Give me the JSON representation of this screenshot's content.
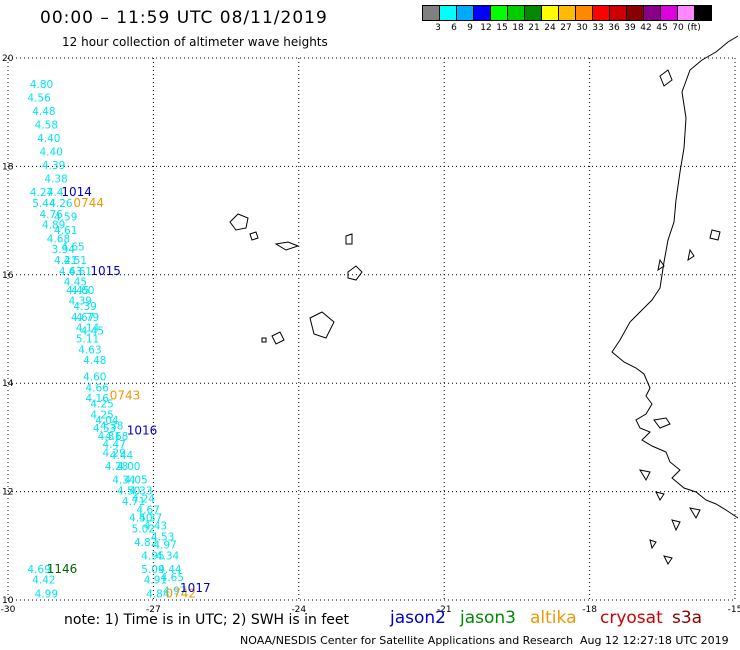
{
  "header": {
    "title": "00:00 – 11:59 UTC 08/11/2019",
    "subtitle": "12 hour collection of altimeter wave heights"
  },
  "legend": {
    "colors": [
      "#808080",
      "#00ffff",
      "#00aaff",
      "#0000ff",
      "#00ff00",
      "#00cc00",
      "#008800",
      "#ffff00",
      "#ffbb00",
      "#ff8800",
      "#ff0000",
      "#cc0000",
      "#880000",
      "#880088",
      "#dd00dd",
      "#ff88ff",
      "#000000"
    ],
    "labels": [
      "3",
      "6",
      "9",
      "12",
      "15",
      "18",
      "21",
      "24",
      "27",
      "30",
      "33",
      "36",
      "39",
      "42",
      "45",
      "70",
      "(ft)"
    ]
  },
  "map": {
    "lat_labels": [
      "20",
      "18",
      "16",
      "14",
      "12",
      "10"
    ],
    "lon_labels": [
      "-30",
      "-27",
      "-24",
      "-21",
      "-18",
      "-15"
    ],
    "lat_range": [
      10,
      20
    ],
    "lon_range": [
      -30,
      -15
    ],
    "cyan_color": "#00e5ee",
    "track_points": [
      {
        "lon": -29.55,
        "lat": 19.45,
        "v": "4.80"
      },
      {
        "lon": -29.6,
        "lat": 19.2,
        "v": "4.56"
      },
      {
        "lon": -29.5,
        "lat": 18.95,
        "v": "4.48"
      },
      {
        "lon": -29.45,
        "lat": 18.7,
        "v": "4.58"
      },
      {
        "lon": -29.4,
        "lat": 18.45,
        "v": "4.40"
      },
      {
        "lon": -29.35,
        "lat": 18.2,
        "v": "4.40"
      },
      {
        "lon": -29.3,
        "lat": 17.95,
        "v": "4.39"
      },
      {
        "lon": -29.25,
        "lat": 17.7,
        "v": "4.38"
      },
      {
        "lon": -29.55,
        "lat": 17.45,
        "v": "4.27"
      },
      {
        "lon": -29.2,
        "lat": 17.45,
        "v": "4.4"
      },
      {
        "lon": -29.5,
        "lat": 17.25,
        "v": "5.44"
      },
      {
        "lon": -29.15,
        "lat": 17.25,
        "v": "4.26"
      },
      {
        "lon": -29.35,
        "lat": 17.05,
        "v": "4.76"
      },
      {
        "lon": -29.05,
        "lat": 17.0,
        "v": "4.59"
      },
      {
        "lon": -29.3,
        "lat": 16.85,
        "v": "4.89"
      },
      {
        "lon": -29.05,
        "lat": 16.75,
        "v": "4.61"
      },
      {
        "lon": -29.2,
        "lat": 16.6,
        "v": "4.68"
      },
      {
        "lon": -29.1,
        "lat": 16.4,
        "v": "3.94"
      },
      {
        "lon": -28.9,
        "lat": 16.45,
        "v": "4.65"
      },
      {
        "lon": -29.05,
        "lat": 16.2,
        "v": "4.21"
      },
      {
        "lon": -28.85,
        "lat": 16.2,
        "v": "4.51"
      },
      {
        "lon": -28.95,
        "lat": 16.0,
        "v": "4.63"
      },
      {
        "lon": -28.75,
        "lat": 16.0,
        "v": "4.61"
      },
      {
        "lon": -28.85,
        "lat": 15.8,
        "v": "4.45"
      },
      {
        "lon": -28.8,
        "lat": 15.65,
        "v": "4.45"
      },
      {
        "lon": -28.7,
        "lat": 15.65,
        "v": "4.60"
      },
      {
        "lon": -28.75,
        "lat": 15.45,
        "v": "4.39"
      },
      {
        "lon": -28.65,
        "lat": 15.35,
        "v": "4.39"
      },
      {
        "lon": -28.7,
        "lat": 15.15,
        "v": "4.67"
      },
      {
        "lon": -28.6,
        "lat": 15.15,
        "v": "4.79"
      },
      {
        "lon": -28.6,
        "lat": 14.95,
        "v": "4.14"
      },
      {
        "lon": -28.5,
        "lat": 14.9,
        "v": "4.45"
      },
      {
        "lon": -28.6,
        "lat": 14.75,
        "v": "5.11"
      },
      {
        "lon": -28.55,
        "lat": 14.55,
        "v": "4.63"
      },
      {
        "lon": -28.45,
        "lat": 14.35,
        "v": "4.48"
      },
      {
        "lon": -28.45,
        "lat": 14.05,
        "v": "4.60"
      },
      {
        "lon": -28.4,
        "lat": 13.85,
        "v": "4.66"
      },
      {
        "lon": -28.4,
        "lat": 13.65,
        "v": "4.16"
      },
      {
        "lon": -28.3,
        "lat": 13.55,
        "v": "4.25"
      },
      {
        "lon": -28.3,
        "lat": 13.35,
        "v": "4.25"
      },
      {
        "lon": -28.2,
        "lat": 13.25,
        "v": "4.04"
      },
      {
        "lon": -28.25,
        "lat": 13.1,
        "v": "4.53"
      },
      {
        "lon": -28.1,
        "lat": 13.15,
        "v": "4.38"
      },
      {
        "lon": -28.15,
        "lat": 12.95,
        "v": "4.31"
      },
      {
        "lon": -28.0,
        "lat": 12.95,
        "v": "4.68"
      },
      {
        "lon": -28.05,
        "lat": 12.8,
        "v": "4.47"
      },
      {
        "lon": -28.05,
        "lat": 12.65,
        "v": "4.29"
      },
      {
        "lon": -27.9,
        "lat": 12.6,
        "v": "4.44"
      },
      {
        "lon": -28.0,
        "lat": 12.4,
        "v": "4.28"
      },
      {
        "lon": -27.75,
        "lat": 12.4,
        "v": "4.00"
      },
      {
        "lon": -27.85,
        "lat": 12.15,
        "v": "4.34"
      },
      {
        "lon": -27.6,
        "lat": 12.15,
        "v": "4.05"
      },
      {
        "lon": -27.75,
        "lat": 11.95,
        "v": "4.50"
      },
      {
        "lon": -27.5,
        "lat": 11.95,
        "v": "4.33"
      },
      {
        "lon": -27.65,
        "lat": 11.75,
        "v": "4.71"
      },
      {
        "lon": -27.45,
        "lat": 11.8,
        "v": "4.24"
      },
      {
        "lon": -27.35,
        "lat": 11.6,
        "v": "4.67"
      },
      {
        "lon": -27.5,
        "lat": 11.45,
        "v": "4.50"
      },
      {
        "lon": -27.3,
        "lat": 11.45,
        "v": "4.37"
      },
      {
        "lon": -27.45,
        "lat": 11.25,
        "v": "5.02"
      },
      {
        "lon": -27.2,
        "lat": 11.3,
        "v": "4.43"
      },
      {
        "lon": -27.4,
        "lat": 11.0,
        "v": "4.82"
      },
      {
        "lon": -27.05,
        "lat": 11.1,
        "v": "4.53"
      },
      {
        "lon": -27.0,
        "lat": 10.95,
        "v": "4.97"
      },
      {
        "lon": -27.25,
        "lat": 10.75,
        "v": "4.95"
      },
      {
        "lon": -26.95,
        "lat": 10.75,
        "v": "4.34"
      },
      {
        "lon": -27.25,
        "lat": 10.5,
        "v": "5.09"
      },
      {
        "lon": -26.9,
        "lat": 10.5,
        "v": "4.44"
      },
      {
        "lon": -27.2,
        "lat": 10.3,
        "v": "4.91"
      },
      {
        "lon": -26.85,
        "lat": 10.35,
        "v": "4.65"
      },
      {
        "lon": -27.15,
        "lat": 10.05,
        "v": "4.84"
      },
      {
        "lon": -26.8,
        "lat": 10.1,
        "v": "4.97"
      },
      {
        "lon": -29.6,
        "lat": 10.5,
        "v": "4.69"
      },
      {
        "lon": -29.5,
        "lat": 10.3,
        "v": "4.42"
      },
      {
        "lon": -29.45,
        "lat": 10.05,
        "v": "4.99"
      }
    ],
    "time_labels": [
      {
        "lon": -28.9,
        "lat": 17.45,
        "t": "1014",
        "color": "#0000cc"
      },
      {
        "lon": -28.65,
        "lat": 17.25,
        "t": "0744",
        "color": "#ee9900"
      },
      {
        "lon": -28.3,
        "lat": 16.0,
        "t": "1015",
        "color": "#0000cc"
      },
      {
        "lon": -27.9,
        "lat": 13.7,
        "t": "0743",
        "color": "#ee9900"
      },
      {
        "lon": -27.55,
        "lat": 13.05,
        "t": "1016",
        "color": "#0000cc"
      },
      {
        "lon": -29.2,
        "lat": 10.5,
        "t": "1146",
        "color": "#006600"
      },
      {
        "lon": -26.75,
        "lat": 10.05,
        "t": "0742",
        "color": "#ee9900"
      },
      {
        "lon": -26.45,
        "lat": 10.15,
        "t": "1017",
        "color": "#0000cc"
      }
    ]
  },
  "note": "note: 1) Time is in UTC; 2) SWH is in feet",
  "satellites": [
    {
      "name": "jason2",
      "color": "#0000cc"
    },
    {
      "name": "jason3",
      "color": "#008800"
    },
    {
      "name": "altika",
      "color": "#ee9900"
    },
    {
      "name": "cryosat",
      "color": "#cc0000"
    },
    {
      "name": "s3a",
      "color": "#880000"
    }
  ],
  "footer": {
    "credit": "NOAA/NESDIS Center for Satellite Applications and Research",
    "timestamp": "Aug 12 12:27:18 UTC 2019"
  }
}
